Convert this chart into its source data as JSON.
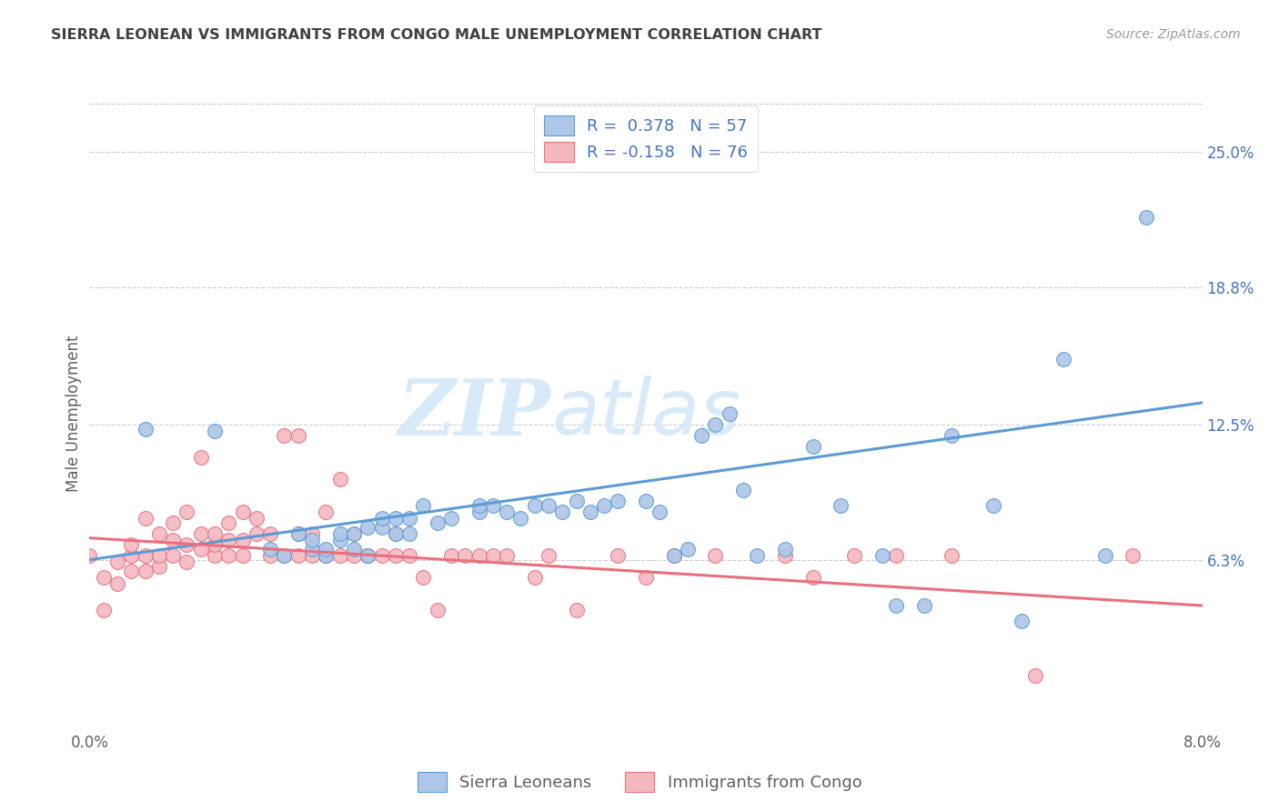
{
  "title": "SIERRA LEONEAN VS IMMIGRANTS FROM CONGO MALE UNEMPLOYMENT CORRELATION CHART",
  "source": "Source: ZipAtlas.com",
  "ylabel": "Male Unemployment",
  "ytick_labels": [
    "25.0%",
    "18.8%",
    "12.5%",
    "6.3%"
  ],
  "ytick_values": [
    0.25,
    0.188,
    0.125,
    0.063
  ],
  "xtick_left_label": "0.0%",
  "xtick_right_label": "8.0%",
  "xmin": 0.0,
  "xmax": 0.08,
  "ymin": -0.015,
  "ymax": 0.275,
  "legend_entries": [
    {
      "label": "R =  0.378   N = 57",
      "facecolor": "#aec6e8",
      "edgecolor": "#5b9bd5"
    },
    {
      "label": "R = -0.158   N = 76",
      "facecolor": "#f4b8c1",
      "edgecolor": "#e8707e"
    }
  ],
  "legend_labels_bottom": [
    "Sierra Leoneans",
    "Immigrants from Congo"
  ],
  "blue_dot_face": "#aec6e8",
  "blue_dot_edge": "#5b9bd5",
  "pink_dot_face": "#f4b8c1",
  "pink_dot_edge": "#e8707e",
  "blue_line_color": "#5b9bd5",
  "pink_line_color": "#e8707e",
  "blue_line_x": [
    0.0,
    0.08
  ],
  "blue_line_y": [
    0.063,
    0.135
  ],
  "pink_line_x": [
    0.0,
    0.08
  ],
  "pink_line_y": [
    0.073,
    0.042
  ],
  "blue_scatter_x": [
    0.004,
    0.009,
    0.013,
    0.014,
    0.015,
    0.016,
    0.016,
    0.017,
    0.017,
    0.018,
    0.018,
    0.019,
    0.019,
    0.02,
    0.02,
    0.021,
    0.021,
    0.022,
    0.022,
    0.023,
    0.023,
    0.024,
    0.025,
    0.026,
    0.028,
    0.028,
    0.029,
    0.03,
    0.031,
    0.032,
    0.033,
    0.034,
    0.035,
    0.036,
    0.037,
    0.038,
    0.04,
    0.041,
    0.042,
    0.043,
    0.044,
    0.045,
    0.046,
    0.047,
    0.048,
    0.05,
    0.052,
    0.054,
    0.057,
    0.058,
    0.06,
    0.062,
    0.065,
    0.067,
    0.07,
    0.073,
    0.076
  ],
  "blue_scatter_y": [
    0.123,
    0.122,
    0.068,
    0.065,
    0.075,
    0.068,
    0.072,
    0.065,
    0.068,
    0.072,
    0.075,
    0.068,
    0.075,
    0.065,
    0.078,
    0.078,
    0.082,
    0.075,
    0.082,
    0.075,
    0.082,
    0.088,
    0.08,
    0.082,
    0.085,
    0.088,
    0.088,
    0.085,
    0.082,
    0.088,
    0.088,
    0.085,
    0.09,
    0.085,
    0.088,
    0.09,
    0.09,
    0.085,
    0.065,
    0.068,
    0.12,
    0.125,
    0.13,
    0.095,
    0.065,
    0.068,
    0.115,
    0.088,
    0.065,
    0.042,
    0.042,
    0.12,
    0.088,
    0.035,
    0.155,
    0.065,
    0.22
  ],
  "pink_scatter_x": [
    0.0,
    0.001,
    0.001,
    0.002,
    0.002,
    0.003,
    0.003,
    0.003,
    0.004,
    0.004,
    0.004,
    0.005,
    0.005,
    0.005,
    0.006,
    0.006,
    0.006,
    0.007,
    0.007,
    0.007,
    0.008,
    0.008,
    0.008,
    0.009,
    0.009,
    0.009,
    0.01,
    0.01,
    0.01,
    0.011,
    0.011,
    0.011,
    0.012,
    0.012,
    0.013,
    0.013,
    0.014,
    0.014,
    0.015,
    0.015,
    0.015,
    0.016,
    0.016,
    0.017,
    0.017,
    0.018,
    0.018,
    0.019,
    0.019,
    0.02,
    0.02,
    0.021,
    0.022,
    0.022,
    0.023,
    0.024,
    0.025,
    0.026,
    0.027,
    0.028,
    0.029,
    0.03,
    0.032,
    0.033,
    0.035,
    0.038,
    0.04,
    0.042,
    0.045,
    0.05,
    0.052,
    0.055,
    0.058,
    0.062,
    0.068,
    0.075
  ],
  "pink_scatter_y": [
    0.065,
    0.04,
    0.055,
    0.052,
    0.062,
    0.058,
    0.065,
    0.07,
    0.058,
    0.065,
    0.082,
    0.06,
    0.065,
    0.075,
    0.065,
    0.072,
    0.08,
    0.062,
    0.07,
    0.085,
    0.068,
    0.075,
    0.11,
    0.065,
    0.07,
    0.075,
    0.065,
    0.072,
    0.08,
    0.065,
    0.072,
    0.085,
    0.075,
    0.082,
    0.065,
    0.075,
    0.065,
    0.12,
    0.065,
    0.075,
    0.12,
    0.065,
    0.075,
    0.065,
    0.085,
    0.065,
    0.1,
    0.065,
    0.075,
    0.065,
    0.065,
    0.065,
    0.065,
    0.075,
    0.065,
    0.055,
    0.04,
    0.065,
    0.065,
    0.065,
    0.065,
    0.065,
    0.055,
    0.065,
    0.04,
    0.065,
    0.055,
    0.065,
    0.065,
    0.065,
    0.055,
    0.065,
    0.065,
    0.065,
    0.01,
    0.065
  ],
  "grid_color": "#cccccc",
  "bg_color": "#ffffff",
  "title_color": "#404040",
  "axis_label_color": "#606060",
  "right_tick_color": "#4472c4",
  "watermark_color": "#d8eaf8",
  "dot_size": 130,
  "line_width": 2.2
}
